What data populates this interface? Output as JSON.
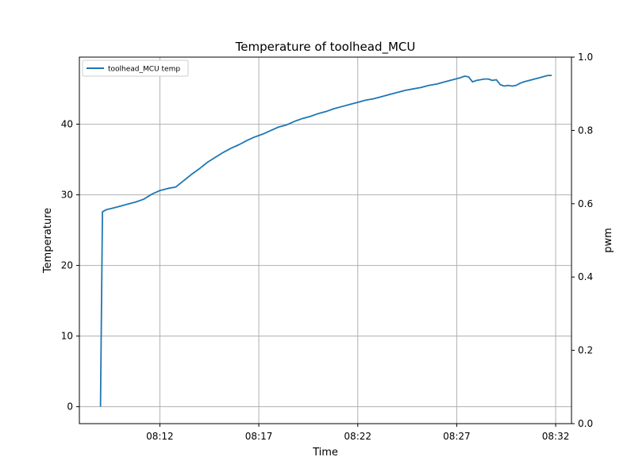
{
  "chart_data": {
    "type": "line",
    "title": "Temperature of toolhead_MCU",
    "xlabel": "Time",
    "ylabel": "Temperature",
    "y2label": "pwm",
    "x_unit": "HH:MM",
    "xlim": [
      "08:07:56",
      "08:32:48"
    ],
    "ylim": [
      -2.4,
      49.5
    ],
    "y2lim": [
      0,
      1.0
    ],
    "x_ticks": [
      "08:12",
      "08:17",
      "08:22",
      "08:27",
      "08:32"
    ],
    "y_ticks": [
      0,
      10,
      20,
      30,
      40
    ],
    "y2_ticks": [
      "0.0",
      "0.2",
      "0.4",
      "0.6",
      "0.8",
      "1.0"
    ],
    "grid": true,
    "legend_position": "top-left",
    "colors": {
      "series": "#1f77b4",
      "grid": "#b0b0b0",
      "axis": "#000000"
    },
    "series": [
      {
        "name": "toolhead_MCU temp",
        "x": [
          "08:09:00",
          "08:09:06",
          "08:09:18",
          "08:09:36",
          "08:10:00",
          "08:10:24",
          "08:10:48",
          "08:11:12",
          "08:11:36",
          "08:12:00",
          "08:12:24",
          "08:12:48",
          "08:13:12",
          "08:13:36",
          "08:14:00",
          "08:14:24",
          "08:14:48",
          "08:15:12",
          "08:15:36",
          "08:16:00",
          "08:16:24",
          "08:16:48",
          "08:17:12",
          "08:17:36",
          "08:18:00",
          "08:18:24",
          "08:18:48",
          "08:19:12",
          "08:19:36",
          "08:20:00",
          "08:20:24",
          "08:20:48",
          "08:21:12",
          "08:21:36",
          "08:22:00",
          "08:22:24",
          "08:22:48",
          "08:23:12",
          "08:23:36",
          "08:24:00",
          "08:24:24",
          "08:24:48",
          "08:25:12",
          "08:25:36",
          "08:26:00",
          "08:26:24",
          "08:26:48",
          "08:27:12",
          "08:27:24",
          "08:27:36",
          "08:27:48",
          "08:28:00",
          "08:28:12",
          "08:28:24",
          "08:28:36",
          "08:28:48",
          "08:29:00",
          "08:29:12",
          "08:29:24",
          "08:29:36",
          "08:29:48",
          "08:30:00",
          "08:30:12",
          "08:30:24",
          "08:30:48",
          "08:31:12",
          "08:31:36",
          "08:31:48"
        ],
        "values": [
          0.0,
          27.6,
          27.9,
          28.1,
          28.4,
          28.7,
          29.0,
          29.4,
          30.1,
          30.6,
          30.9,
          31.1,
          32.0,
          32.9,
          33.7,
          34.6,
          35.3,
          36.0,
          36.6,
          37.1,
          37.7,
          38.2,
          38.6,
          39.1,
          39.6,
          39.9,
          40.4,
          40.8,
          41.1,
          41.5,
          41.8,
          42.2,
          42.5,
          42.8,
          43.1,
          43.4,
          43.6,
          43.9,
          44.2,
          44.5,
          44.8,
          45.0,
          45.2,
          45.5,
          45.7,
          46.0,
          46.3,
          46.6,
          46.8,
          46.7,
          46.0,
          46.2,
          46.3,
          46.4,
          46.4,
          46.2,
          46.3,
          45.6,
          45.4,
          45.5,
          45.4,
          45.5,
          45.8,
          46.0,
          46.3,
          46.6,
          46.9,
          46.9
        ]
      }
    ]
  }
}
